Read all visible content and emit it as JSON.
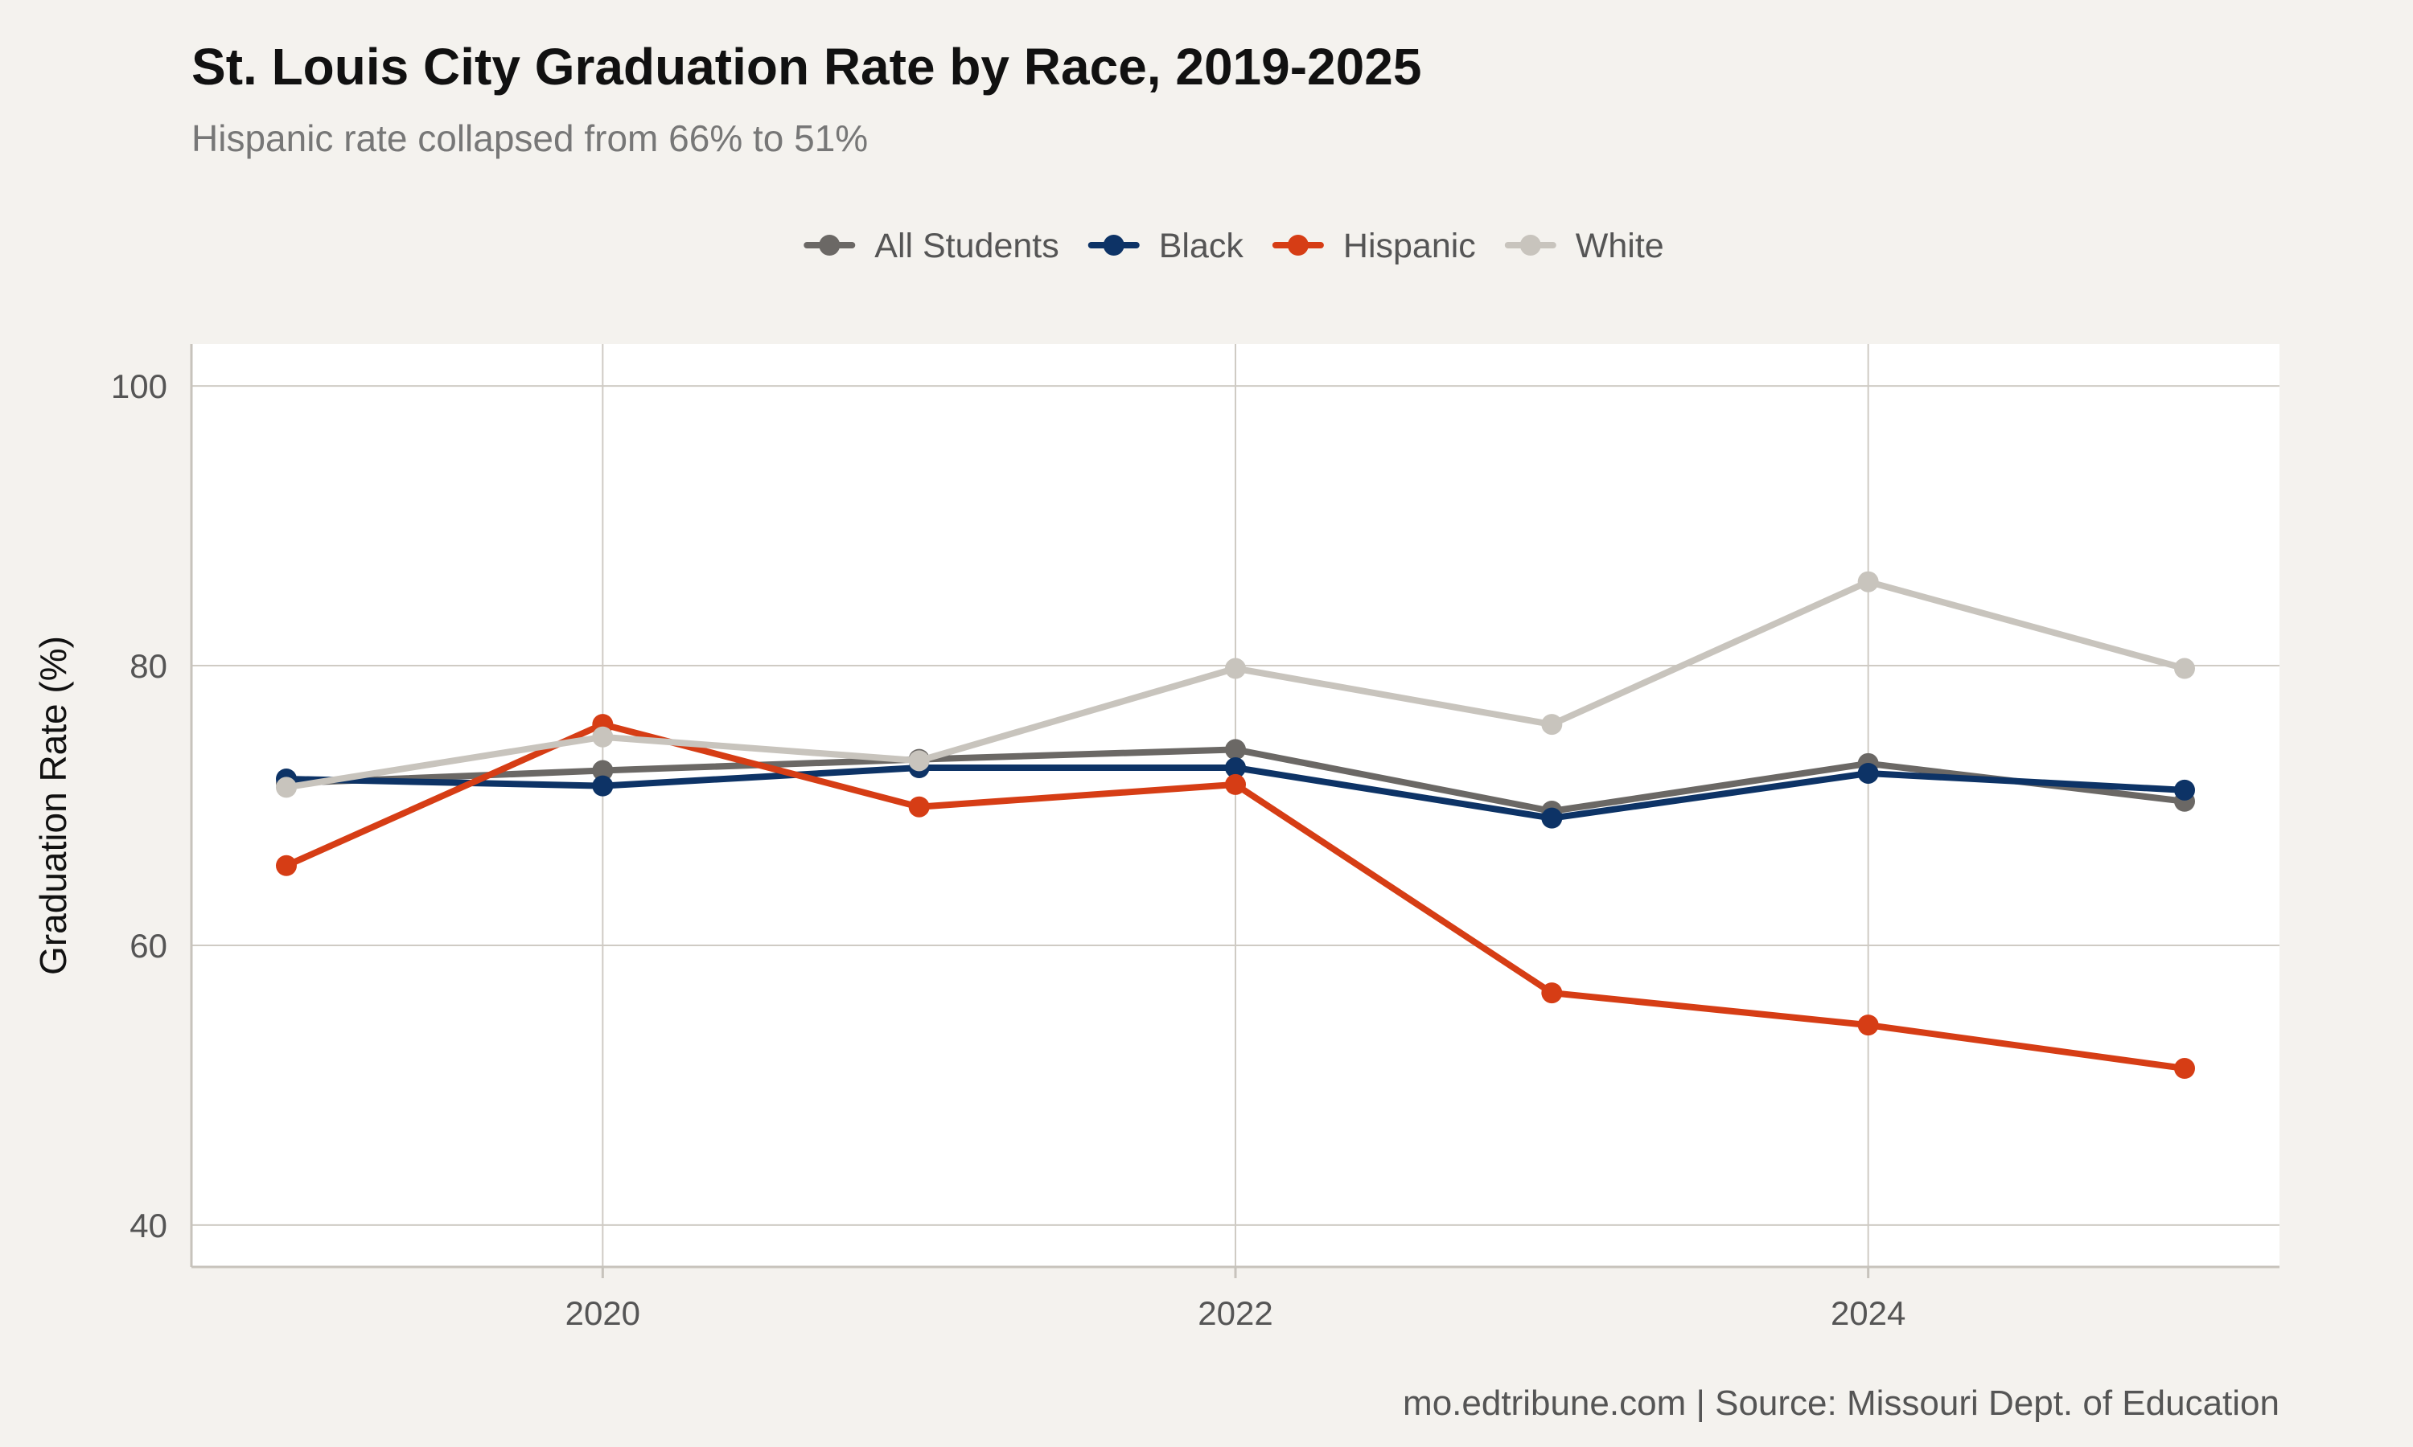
{
  "chart_data": {
    "type": "line",
    "title": "St. Louis City Graduation Rate by Race, 2019-2025",
    "subtitle": "Hispanic rate collapsed from 66% to 51%",
    "xlabel": "",
    "ylabel": "Graduation Rate (%)",
    "caption": "mo.edtribune.com | Source: Missouri Dept. of Education",
    "x": [
      2019,
      2020,
      2021,
      2022,
      2023,
      2024,
      2025
    ],
    "xticks": [
      2020,
      2022,
      2024
    ],
    "xtick_labels": [
      "2020",
      "2022",
      "2024"
    ],
    "xlim": [
      2018.7,
      2025.3
    ],
    "ylim": [
      37,
      103
    ],
    "yticks": [
      40,
      60,
      80,
      100
    ],
    "ytick_labels": [
      "40",
      "60",
      "80",
      "100"
    ],
    "grid": true,
    "legend_position": "top",
    "series": [
      {
        "name": "All Students",
        "color": "#6b6865",
        "values": [
          71.6,
          72.5,
          73.3,
          74.0,
          69.6,
          73.0,
          70.3
        ]
      },
      {
        "name": "Black",
        "color": "#0d3366",
        "values": [
          71.9,
          71.4,
          72.7,
          72.7,
          69.1,
          72.3,
          71.1
        ]
      },
      {
        "name": "Hispanic",
        "color": "#d63d15",
        "values": [
          65.7,
          75.8,
          69.9,
          71.5,
          56.6,
          54.3,
          51.2
        ]
      },
      {
        "name": "White",
        "color": "#c8c4bd",
        "values": [
          71.3,
          74.9,
          73.2,
          79.8,
          75.8,
          86.0,
          79.8
        ]
      }
    ]
  }
}
